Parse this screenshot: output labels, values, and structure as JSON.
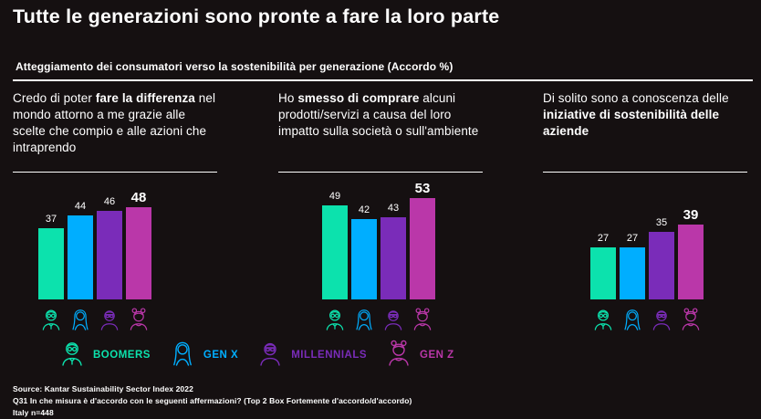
{
  "title": "Tutte le generazioni sono pronte a fare la loro parte",
  "subtitle": "Atteggiamento dei consumatori verso la sostenibilità per generazione (Accordo %)",
  "colors": {
    "background": "#151011",
    "text": "#ffffff",
    "boomers": "#0CE2AD",
    "genx": "#00AEFF",
    "millennials": "#7A2CB9",
    "genz": "#BA37A9"
  },
  "generations": [
    {
      "id": "boomers",
      "label": "BOOMERS",
      "color": "#0CE2AD",
      "icon": "boomers-avatar-icon"
    },
    {
      "id": "genx",
      "label": "GEN X",
      "color": "#00AEFF",
      "icon": "genx-avatar-icon"
    },
    {
      "id": "millennials",
      "label": "MILLENNIALS",
      "color": "#7A2CB9",
      "icon": "millennials-avatar-icon"
    },
    {
      "id": "genz",
      "label": "GEN Z",
      "color": "#BA37A9",
      "icon": "genz-avatar-icon"
    }
  ],
  "statements": [
    {
      "pre": "Credo di poter ",
      "bold": "fare la differenza",
      "post": " nel mondo attorno a me grazie alle scelte che compio e alle azioni che intraprendo"
    },
    {
      "pre": "Ho ",
      "bold": "smesso di comprare",
      "post": " alcuni prodotti/servizi a causa del loro impatto sulla società o sull'ambiente"
    },
    {
      "pre": "Di solito sono a conoscenza delle ",
      "bold": "iniziative di sostenibilità delle aziende",
      "post": ""
    }
  ],
  "chart_data": {
    "type": "bar",
    "unit": "Accordo %",
    "categories": [
      "Boomers",
      "Gen X",
      "Millennials",
      "Gen Z"
    ],
    "groups": [
      {
        "statement_index": 0,
        "values": [
          37,
          44,
          46,
          48
        ]
      },
      {
        "statement_index": 1,
        "values": [
          49,
          42,
          43,
          53
        ]
      },
      {
        "statement_index": 2,
        "values": [
          27,
          27,
          35,
          39
        ]
      }
    ],
    "highlight_category": "Gen Z",
    "ylim": [
      0,
      60
    ],
    "grid": false,
    "legend_position": "bottom"
  },
  "footer": {
    "line1": "Source: Kantar Sustainability Sector Index 2022",
    "line2": "Q31 In che misura è d'accordo con le seguenti affermazioni? (Top 2 Box Fortemente d'accordo/d'accordo)",
    "line3": "Italy n=448"
  }
}
